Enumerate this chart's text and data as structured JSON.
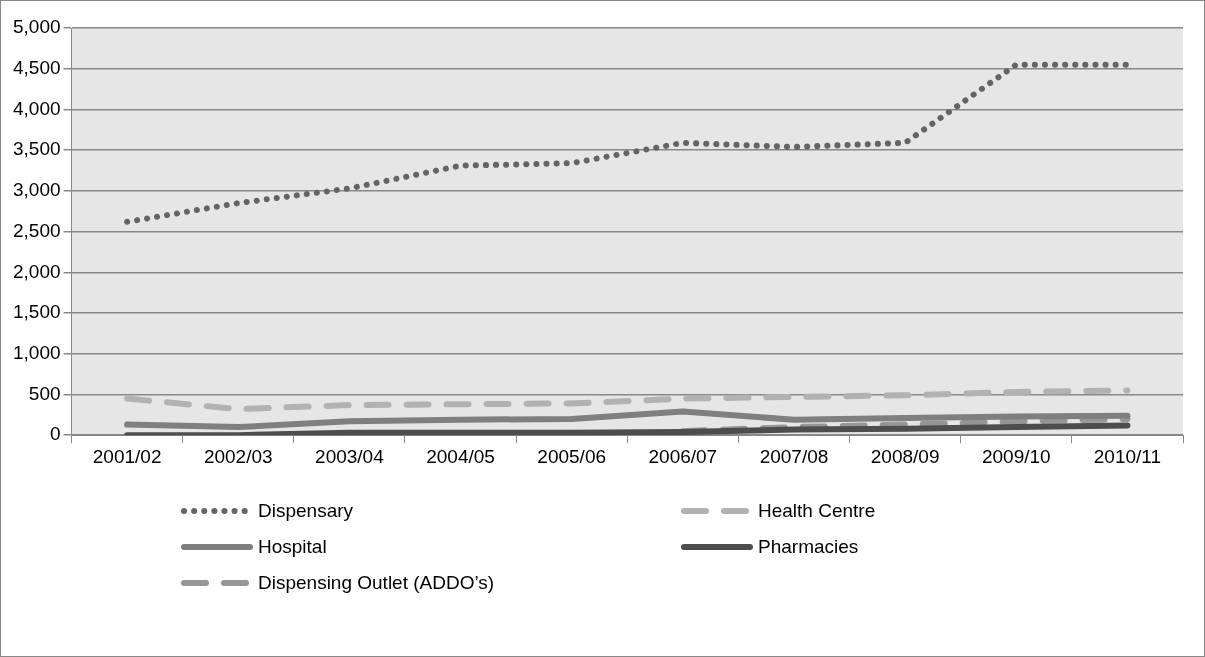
{
  "chart_data": {
    "type": "line",
    "categories": [
      "2001/02",
      "2002/03",
      "2003/04",
      "2004/05",
      "2005/06",
      "2006/07",
      "2007/08",
      "2008/09",
      "2009/10",
      "2010/11"
    ],
    "series": [
      {
        "name": "Dispensary",
        "color": "#646464",
        "line_style": "dotted",
        "values": [
          2620,
          2850,
          3030,
          3310,
          3340,
          3590,
          3540,
          3590,
          4550,
          4550
        ]
      },
      {
        "name": "Health Centre",
        "color": "#b2b2b2",
        "line_style": "dashed",
        "values": [
          450,
          320,
          370,
          380,
          390,
          450,
          470,
          490,
          530,
          550
        ]
      },
      {
        "name": "Hospital",
        "color": "#7f7f7f",
        "line_style": "solid",
        "values": [
          130,
          100,
          170,
          190,
          200,
          290,
          190,
          210,
          230,
          240
        ]
      },
      {
        "name": "Pharmacies",
        "color": "#4d4d4d",
        "line_style": "solid",
        "values": [
          0,
          0,
          30,
          30,
          30,
          40,
          70,
          80,
          100,
          120
        ]
      },
      {
        "name": "Dispensing Outlet (ADDO’s)",
        "color": "#969696",
        "line_style": "dashed",
        "values": [
          null,
          null,
          null,
          null,
          null,
          50,
          100,
          130,
          170,
          200
        ]
      }
    ],
    "ylim": [
      0,
      5000
    ],
    "yticks": [
      0,
      500,
      {
        "value": 1000,
        "label": "1,000"
      },
      {
        "value": 1500,
        "label": "1,500"
      },
      {
        "value": 2000,
        "label": "2,000"
      },
      {
        "value": 2500,
        "label": "2,500"
      },
      {
        "value": 3000,
        "label": "3,000"
      },
      {
        "value": 3500,
        "label": "3,500"
      },
      {
        "value": 4000,
        "label": "4,000"
      },
      {
        "value": 4500,
        "label": "4,500"
      },
      {
        "value": 5000,
        "label": "5,000"
      }
    ],
    "grid": "y",
    "legend": "bottom",
    "marker": "none"
  }
}
